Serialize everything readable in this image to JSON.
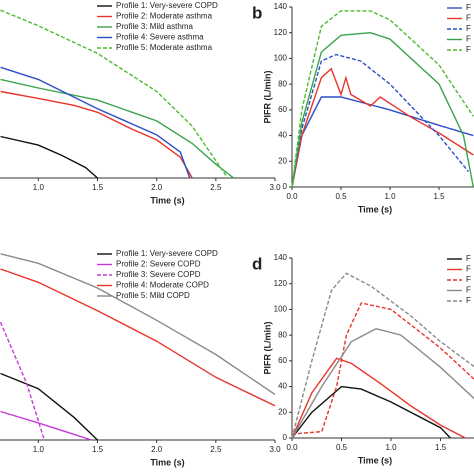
{
  "chart_data": [
    {
      "type": "line",
      "xlabel": "Time (s)",
      "xlim": [
        0,
        3
      ],
      "ylim": [
        0,
        100
      ],
      "xticks": [
        {
          "value": 1,
          "label": "1.0"
        },
        1.5,
        {
          "value": 2,
          "label": "2.0"
        },
        2.5,
        {
          "value": 3,
          "label": "3.0"
        }
      ],
      "series": [
        {
          "name": "Profile 1: Very-severe COPD",
          "color": "#111111",
          "style": "solid",
          "x": [
            0.68,
            1.0,
            1.2,
            1.4,
            1.5
          ],
          "values": [
            24,
            19,
            13,
            6,
            0
          ]
        },
        {
          "name": "Profile 2: Moderate asthma",
          "color": "#e8352b",
          "style": "solid",
          "x": [
            0.68,
            1.0,
            1.3,
            1.5,
            1.8,
            2.0,
            2.2,
            2.3
          ],
          "values": [
            50,
            46,
            42,
            38,
            28,
            22,
            12,
            0
          ]
        },
        {
          "name": "Profile 3: Mild asthma",
          "color": "#3aa34a",
          "style": "solid",
          "x": [
            0.68,
            1.0,
            1.5,
            2.0,
            2.3,
            2.5,
            2.65
          ],
          "values": [
            57,
            52,
            45,
            33,
            20,
            8,
            0
          ]
        },
        {
          "name": "Profile 4: Severe asthma",
          "color": "#2a4fc8",
          "style": "solid",
          "x": [
            0.68,
            1.0,
            1.5,
            2.0,
            2.2,
            2.28
          ],
          "values": [
            64,
            57,
            40,
            25,
            15,
            0
          ]
        },
        {
          "name": "Profile 5: Moderate asthma",
          "color": "#4cbb2e",
          "style": "dashed",
          "x": [
            0.68,
            1.0,
            1.5,
            2.0,
            2.3,
            2.5,
            2.6
          ],
          "values": [
            97,
            88,
            72,
            50,
            30,
            10,
            0
          ]
        }
      ]
    },
    {
      "type": "line",
      "panel_label": "b",
      "xlabel": "Time (s)",
      "ylabel": "PIFR (L/min)",
      "xlim": [
        0,
        2
      ],
      "ylim": [
        0,
        140
      ],
      "xticks": [
        {
          "value": 0,
          "label": "0.0"
        },
        0.5,
        {
          "value": 1,
          "label": "1.0"
        },
        1.5
      ],
      "yticks": [
        0,
        20,
        40,
        60,
        80,
        100,
        120,
        140
      ],
      "series": [
        {
          "name": "F",
          "color": "#2a4fc8",
          "style": "solid",
          "x": [
            0,
            0.1,
            0.3,
            0.5,
            1.0,
            1.5,
            1.85
          ],
          "values": [
            0,
            40,
            70,
            70,
            60,
            48,
            40
          ]
        },
        {
          "name": "F",
          "color": "#e8352b",
          "style": "solid",
          "x": [
            0,
            0.1,
            0.3,
            0.4,
            0.5,
            0.55,
            0.6,
            0.8,
            0.9,
            1.0,
            1.2,
            1.5,
            1.85
          ],
          "values": [
            0,
            40,
            85,
            92,
            72,
            85,
            72,
            63,
            70,
            65,
            55,
            42,
            25
          ]
        },
        {
          "name": "F",
          "color": "#2a4fc8",
          "style": "dashed",
          "x": [
            0,
            0.1,
            0.3,
            0.45,
            0.7,
            1.0,
            1.5,
            1.8
          ],
          "values": [
            0,
            45,
            98,
            103,
            98,
            80,
            40,
            12
          ]
        },
        {
          "name": "F",
          "color": "#3aa34a",
          "style": "solid",
          "x": [
            0,
            0.1,
            0.3,
            0.5,
            0.8,
            1.0,
            1.5,
            1.75,
            1.85
          ],
          "values": [
            0,
            50,
            105,
            118,
            120,
            115,
            80,
            40,
            0
          ]
        },
        {
          "name": "F",
          "color": "#4cbb2e",
          "style": "dashed",
          "x": [
            0,
            0.1,
            0.3,
            0.5,
            0.8,
            1.0,
            1.5,
            1.85
          ],
          "values": [
            0,
            60,
            125,
            137,
            137,
            130,
            95,
            55
          ]
        }
      ]
    },
    {
      "type": "line",
      "xlabel": "Time (s)",
      "xlim": [
        0,
        3
      ],
      "ylim": [
        0,
        100
      ],
      "xticks": [
        {
          "value": 1,
          "label": "1.0"
        },
        1.5,
        {
          "value": 2,
          "label": "2.0"
        },
        2.5,
        {
          "value": 3,
          "label": "3.0"
        }
      ],
      "series": [
        {
          "name": "Profile 1: Very-severe COPD",
          "color": "#111111",
          "style": "solid",
          "x": [
            0.68,
            1.0,
            1.3,
            1.5
          ],
          "values": [
            35,
            27,
            12,
            0
          ]
        },
        {
          "name": "Profile 2: Severe COPD",
          "color": "#c43ad6",
          "style": "solid",
          "x": [
            0.68,
            1.0,
            1.3,
            1.45
          ],
          "values": [
            15,
            9,
            3,
            0
          ]
        },
        {
          "name": "Profile 3: Severe COPD",
          "color": "#c43ad6",
          "style": "dashed",
          "x": [
            0.68,
            0.9,
            1.05
          ],
          "values": [
            62,
            30,
            0
          ]
        },
        {
          "name": "Profile 4: Moderate COPD",
          "color": "#e8352b",
          "style": "solid",
          "x": [
            0.68,
            1.0,
            1.5,
            2.0,
            2.5,
            3.0
          ],
          "values": [
            90,
            83,
            68,
            52,
            33,
            18
          ]
        },
        {
          "name": "Profile 5: Mild COPD",
          "color": "#8a8a8a",
          "style": "solid",
          "x": [
            0.68,
            1.0,
            1.5,
            2.0,
            2.5,
            3.0
          ],
          "values": [
            98,
            93,
            80,
            63,
            45,
            24
          ]
        }
      ]
    },
    {
      "type": "line",
      "panel_label": "d",
      "xlabel": "Time (s)",
      "ylabel": "PIFR (L/min)",
      "xlim": [
        0,
        2
      ],
      "ylim": [
        0,
        140
      ],
      "xticks": [
        {
          "value": 0,
          "label": "0.0"
        },
        0.5,
        {
          "value": 1,
          "label": "1.0"
        },
        1.5
      ],
      "yticks": [
        0,
        20,
        40,
        60,
        80,
        100,
        120,
        140
      ],
      "series": [
        {
          "name": "F",
          "color": "#111111",
          "style": "solid",
          "x": [
            0,
            0.2,
            0.5,
            0.7,
            1.0,
            1.5,
            1.6
          ],
          "values": [
            0,
            20,
            40,
            38,
            28,
            8,
            0
          ]
        },
        {
          "name": "F",
          "color": "#e8352b",
          "style": "solid",
          "x": [
            0,
            0.2,
            0.45,
            0.6,
            0.9,
            1.2,
            1.5,
            1.75
          ],
          "values": [
            0,
            35,
            62,
            58,
            42,
            25,
            10,
            0
          ]
        },
        {
          "name": "F",
          "color": "#e8352b",
          "style": "dashed",
          "x": [
            0,
            0.3,
            0.45,
            0.55,
            0.7,
            1.0,
            1.5,
            1.85
          ],
          "values": [
            3,
            5,
            40,
            80,
            105,
            100,
            70,
            45
          ]
        },
        {
          "name": "F",
          "color": "#8a8a8a",
          "style": "solid",
          "x": [
            0,
            0.3,
            0.6,
            0.85,
            1.1,
            1.5,
            1.85
          ],
          "values": [
            0,
            40,
            75,
            85,
            80,
            55,
            30
          ]
        },
        {
          "name": "F",
          "color": "#8a8a8a",
          "style": "dashed",
          "x": [
            0,
            0.2,
            0.4,
            0.55,
            0.8,
            1.2,
            1.5,
            1.85
          ],
          "values": [
            0,
            60,
            115,
            128,
            118,
            95,
            75,
            55
          ]
        }
      ]
    }
  ]
}
